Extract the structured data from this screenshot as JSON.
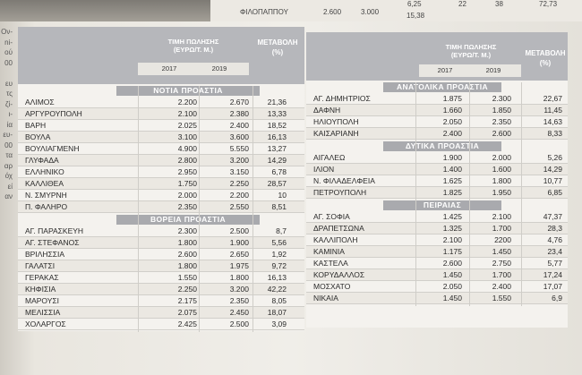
{
  "top_strip": {
    "left_label": "ΦΙΛΟΠΑΠΠΟΥ",
    "left_v2017": "2.600",
    "left_v2019": "3.000",
    "left_change": "15,38",
    "right_top_a": "6,25",
    "right_top_b": "22",
    "right_top_c": "38",
    "right_top_d": "72,73"
  },
  "gutter_text": [
    "Ον-",
    "ni-",
    "ού",
    "00",
    "",
    "ευ",
    "τς",
    "ζί-",
    "ι-",
    "ία",
    "ευ-",
    "00",
    "τα",
    "αρ",
    "όχ",
    "εί",
    "αν"
  ],
  "headers": {
    "price": "ΤΙΜΗ ΠΩΛΗΣΗΣ",
    "price_unit": "(ΕΥΡΩ/Τ. Μ.)",
    "change": "ΜΕΤΑΒΟΛΗ",
    "change_unit": "(%)",
    "year1": "2017",
    "year2": "2019"
  },
  "left": {
    "sections": [
      {
        "title": "ΝΟΤΙΑ ΠΡΟΑΣΤΙΑ",
        "rows": [
          {
            "name": "ΑΛΙΜΟΣ",
            "v2017": "2.200",
            "v2019": "2.670",
            "change": "21,36"
          },
          {
            "name": "ΑΡΓΥΡΟΥΠΟΛΗ",
            "v2017": "2.100",
            "v2019": "2.380",
            "change": "13,33"
          },
          {
            "name": "ΒΑΡΗ",
            "v2017": "2.025",
            "v2019": "2.400",
            "change": "18,52"
          },
          {
            "name": "ΒΟΥΛΑ",
            "v2017": "3.100",
            "v2019": "3.600",
            "change": "16,13"
          },
          {
            "name": "ΒΟΥΛΙΑΓΜΕΝΗ",
            "v2017": "4.900",
            "v2019": "5.550",
            "change": "13,27"
          },
          {
            "name": "ΓΛΥΦΑΔΑ",
            "v2017": "2.800",
            "v2019": "3.200",
            "change": "14,29"
          },
          {
            "name": "ΕΛΛΗΝΙΚΟ",
            "v2017": "2.950",
            "v2019": "3.150",
            "change": "6,78"
          },
          {
            "name": "ΚΑΛΛΙΘΕΑ",
            "v2017": "1.750",
            "v2019": "2.250",
            "change": "28,57"
          },
          {
            "name": "Ν. ΣΜΥΡΝΗ",
            "v2017": "2.000",
            "v2019": "2.200",
            "change": "10"
          },
          {
            "name": "Π. ΦΑΛΗΡΟ",
            "v2017": "2.350",
            "v2019": "2.550",
            "change": "8,51"
          }
        ]
      },
      {
        "title": "ΒΟΡΕΙΑ ΠΡΟΑΣΤΙΑ",
        "rows": [
          {
            "name": "ΑΓ. ΠΑΡΑΣΚΕΥΗ",
            "v2017": "2.300",
            "v2019": "2.500",
            "change": "8,7"
          },
          {
            "name": "ΑΓ. ΣΤΕΦΑΝΟΣ",
            "v2017": "1.800",
            "v2019": "1.900",
            "change": "5,56"
          },
          {
            "name": "ΒΡΙΛΗΣΣΙΑ",
            "v2017": "2.600",
            "v2019": "2.650",
            "change": "1,92"
          },
          {
            "name": "ΓΑΛΑΤΣΙ",
            "v2017": "1.800",
            "v2019": "1.975",
            "change": "9,72"
          },
          {
            "name": "ΓΕΡΑΚΑΣ",
            "v2017": "1.550",
            "v2019": "1.800",
            "change": "16,13"
          },
          {
            "name": "ΚΗΦΙΣΙΑ",
            "v2017": "2.250",
            "v2019": "3.200",
            "change": "42,22"
          },
          {
            "name": "ΜΑΡΟΥΣΙ",
            "v2017": "2.175",
            "v2019": "2.350",
            "change": "8,05"
          },
          {
            "name": "ΜΕΛΙΣΣΙΑ",
            "v2017": "2.075",
            "v2019": "2.450",
            "change": "18,07"
          },
          {
            "name": "ΧΟΛΑΡΓΟΣ",
            "v2017": "2.425",
            "v2019": "2.500",
            "change": "3,09"
          }
        ]
      }
    ]
  },
  "right": {
    "sections": [
      {
        "title": "ΑΝΑΤΟΛΙΚΑ ΠΡΟΑΣΤΙΑ",
        "rows": [
          {
            "name": "ΑΓ. ΔΗΜΗΤΡΙΟΣ",
            "v2017": "1.875",
            "v2019": "2.300",
            "change": "22,67"
          },
          {
            "name": "ΔΑΦΝΗ",
            "v2017": "1.660",
            "v2019": "1.850",
            "change": "11,45"
          },
          {
            "name": "ΗΛΙΟΥΠΟΛΗ",
            "v2017": "2.050",
            "v2019": "2.350",
            "change": "14,63"
          },
          {
            "name": "ΚΑΙΣΑΡΙΑΝΗ",
            "v2017": "2.400",
            "v2019": "2.600",
            "change": "8,33"
          }
        ]
      },
      {
        "title": "ΔΥΤΙΚΑ ΠΡΟΑΣΤΙΑ",
        "rows": [
          {
            "name": "ΑΙΓΑΛΕΩ",
            "v2017": "1.900",
            "v2019": "2.000",
            "change": "5,26"
          },
          {
            "name": "ΙΛΙΟΝ",
            "v2017": "1.400",
            "v2019": "1.600",
            "change": "14,29"
          },
          {
            "name": "Ν. ΦΙΛΑΔΕΛΦΕΙΑ",
            "v2017": "1.625",
            "v2019": "1.800",
            "change": "10,77"
          },
          {
            "name": "ΠΕΤΡΟΥΠΟΛΗ",
            "v2017": "1.825",
            "v2019": "1.950",
            "change": "6,85"
          }
        ]
      },
      {
        "title": "ΠΕΙΡΑΙΑΣ",
        "rows": [
          {
            "name": "ΑΓ. ΣΟΦΙΑ",
            "v2017": "1.425",
            "v2019": "2.100",
            "change": "47,37"
          },
          {
            "name": "ΔΡΑΠΕΤΣΩΝΑ",
            "v2017": "1.325",
            "v2019": "1.700",
            "change": "28,3"
          },
          {
            "name": "ΚΑΛΛΙΠΟΛΗ",
            "v2017": "2.100",
            "v2019": "2200",
            "change": "4,76"
          },
          {
            "name": "ΚΑΜΙΝΙΑ",
            "v2017": "1.175",
            "v2019": "1.450",
            "change": "23,4"
          },
          {
            "name": "ΚΑΣΤΕΛΑ",
            "v2017": "2.600",
            "v2019": "2.750",
            "change": "5,77"
          },
          {
            "name": "ΚΟΡΥΔΑΛΛΟΣ",
            "v2017": "1.450",
            "v2019": "1.700",
            "change": "17,24"
          },
          {
            "name": "ΜΟΣΧΑΤΟ",
            "v2017": "2.050",
            "v2019": "2.400",
            "change": "17,07"
          },
          {
            "name": "ΝΙΚΑΙΑ",
            "v2017": "1.450",
            "v2019": "1.550",
            "change": "6,9"
          }
        ]
      }
    ]
  }
}
